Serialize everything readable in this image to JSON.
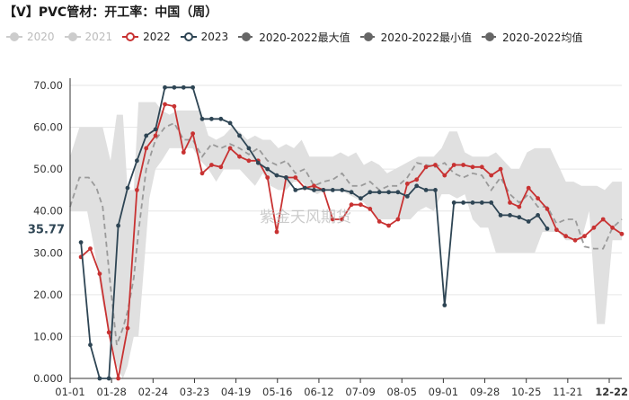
{
  "title": "【V】PVC管材：开工率：中国（周）",
  "watermark": "紫金天风期货",
  "colors": {
    "c2020": "#c8c8c8",
    "c2021": "#c8c8c8",
    "c2022": "#c83232",
    "c2023": "#2e4554",
    "band": "#e0e0e0",
    "avg": "#9a9a9a",
    "endlabel_bg": "#ffffff"
  },
  "legend": [
    {
      "label": "2020",
      "color": "#cccccc",
      "style": "line-dot",
      "muted": true
    },
    {
      "label": "2021",
      "color": "#cccccc",
      "style": "line-dot",
      "muted": true
    },
    {
      "label": "2022",
      "color": "#c83232",
      "style": "line-dot",
      "muted": false
    },
    {
      "label": "2023",
      "color": "#2e4554",
      "style": "line-dot",
      "muted": false
    },
    {
      "label": "2020-2022最大值",
      "color": "#666666",
      "style": "dash-dot",
      "muted": false
    },
    {
      "label": "2020-2022最小值",
      "color": "#666666",
      "style": "dash-dot",
      "muted": false
    },
    {
      "label": "2020-2022均值",
      "color": "#666666",
      "style": "dash-dot",
      "muted": false
    }
  ],
  "end_label": "35.77",
  "chart_data": {
    "type": "line",
    "xlabel": "",
    "ylabel": "",
    "ylim": [
      0,
      70
    ],
    "y_ticks": [
      "0.000",
      "10.00",
      "20.00",
      "30.00",
      "40.00",
      "50.00",
      "60.00",
      "70.00"
    ],
    "x_ticks": [
      "01-01",
      "01-28",
      "02-24",
      "03-23",
      "04-19",
      "05-16",
      "06-12",
      "07-09",
      "08-05",
      "09-01",
      "09-28",
      "10-25",
      "11-21",
      "12-22"
    ],
    "x_domain_days": [
      1,
      356
    ],
    "band_max": [
      [
        1,
        53
      ],
      [
        7,
        60
      ],
      [
        17,
        60
      ],
      [
        22,
        60
      ],
      [
        27,
        52
      ],
      [
        31,
        63
      ],
      [
        35,
        63
      ],
      [
        38,
        45
      ],
      [
        42,
        45
      ],
      [
        45,
        66
      ],
      [
        52,
        66
      ],
      [
        56,
        66
      ],
      [
        60,
        64
      ],
      [
        65,
        63
      ],
      [
        70,
        64
      ],
      [
        80,
        64
      ],
      [
        85,
        64
      ],
      [
        90,
        58
      ],
      [
        95,
        57
      ],
      [
        100,
        58
      ],
      [
        105,
        60
      ],
      [
        110,
        59
      ],
      [
        115,
        57
      ],
      [
        120,
        58
      ],
      [
        125,
        57
      ],
      [
        130,
        57
      ],
      [
        135,
        55
      ],
      [
        140,
        56
      ],
      [
        145,
        55
      ],
      [
        150,
        57
      ],
      [
        155,
        53
      ],
      [
        160,
        53
      ],
      [
        165,
        53
      ],
      [
        170,
        53
      ],
      [
        175,
        54
      ],
      [
        180,
        53
      ],
      [
        185,
        54
      ],
      [
        190,
        51
      ],
      [
        195,
        52
      ],
      [
        200,
        51
      ],
      [
        205,
        49
      ],
      [
        210,
        50
      ],
      [
        215,
        51
      ],
      [
        220,
        52
      ],
      [
        225,
        53
      ],
      [
        230,
        53
      ],
      [
        235,
        53
      ],
      [
        240,
        55
      ],
      [
        245,
        59
      ],
      [
        250,
        59
      ],
      [
        255,
        54
      ],
      [
        260,
        53
      ],
      [
        265,
        53
      ],
      [
        270,
        53
      ],
      [
        275,
        54
      ],
      [
        280,
        52
      ],
      [
        285,
        50
      ],
      [
        290,
        50
      ],
      [
        295,
        54
      ],
      [
        300,
        55
      ],
      [
        305,
        55
      ],
      [
        310,
        55
      ],
      [
        315,
        51
      ],
      [
        320,
        47
      ],
      [
        325,
        47
      ],
      [
        330,
        46
      ],
      [
        335,
        46
      ],
      [
        340,
        46
      ],
      [
        345,
        45
      ],
      [
        350,
        47
      ],
      [
        356,
        47
      ]
    ],
    "band_min": [
      [
        1,
        40
      ],
      [
        7,
        40
      ],
      [
        12,
        40
      ],
      [
        17,
        30
      ],
      [
        22,
        18
      ],
      [
        27,
        10
      ],
      [
        31,
        3
      ],
      [
        35,
        0
      ],
      [
        38,
        3
      ],
      [
        42,
        10
      ],
      [
        45,
        10
      ],
      [
        52,
        43
      ],
      [
        56,
        50
      ],
      [
        60,
        52
      ],
      [
        65,
        55
      ],
      [
        70,
        55
      ],
      [
        80,
        55
      ],
      [
        85,
        52
      ],
      [
        90,
        50
      ],
      [
        95,
        47
      ],
      [
        100,
        50
      ],
      [
        105,
        50
      ],
      [
        110,
        50
      ],
      [
        115,
        48
      ],
      [
        120,
        46
      ],
      [
        125,
        49
      ],
      [
        130,
        46
      ],
      [
        135,
        45
      ],
      [
        140,
        45
      ],
      [
        145,
        47
      ],
      [
        150,
        47
      ],
      [
        155,
        45
      ],
      [
        160,
        44
      ],
      [
        165,
        45
      ],
      [
        170,
        45
      ],
      [
        175,
        45
      ],
      [
        180,
        44
      ],
      [
        185,
        43
      ],
      [
        190,
        42
      ],
      [
        195,
        40
      ],
      [
        200,
        38
      ],
      [
        205,
        38
      ],
      [
        210,
        38
      ],
      [
        215,
        38
      ],
      [
        220,
        38
      ],
      [
        225,
        40
      ],
      [
        230,
        41
      ],
      [
        235,
        40
      ],
      [
        240,
        44
      ],
      [
        245,
        44
      ],
      [
        250,
        43
      ],
      [
        255,
        44
      ],
      [
        260,
        38
      ],
      [
        265,
        36
      ],
      [
        270,
        36
      ],
      [
        275,
        30
      ],
      [
        280,
        30
      ],
      [
        285,
        30
      ],
      [
        290,
        30
      ],
      [
        295,
        30
      ],
      [
        300,
        30
      ],
      [
        305,
        35
      ],
      [
        310,
        35
      ],
      [
        315,
        35
      ],
      [
        320,
        33
      ],
      [
        325,
        33
      ],
      [
        330,
        33
      ],
      [
        335,
        40
      ],
      [
        340,
        13
      ],
      [
        345,
        13
      ],
      [
        350,
        33
      ],
      [
        356,
        33
      ]
    ],
    "series": [
      {
        "name": "2022",
        "color": "#c83232",
        "points": [
          [
            8,
            29
          ],
          [
            14,
            31
          ],
          [
            20,
            25
          ],
          [
            26,
            11
          ],
          [
            32,
            0
          ],
          [
            38,
            12
          ],
          [
            44,
            45
          ],
          [
            50,
            55
          ],
          [
            56,
            58
          ],
          [
            62,
            65.5
          ],
          [
            68,
            65
          ],
          [
            74,
            54
          ],
          [
            80,
            58.5
          ],
          [
            86,
            49
          ],
          [
            92,
            51
          ],
          [
            98,
            50.5
          ],
          [
            104,
            55
          ],
          [
            110,
            53
          ],
          [
            116,
            52
          ],
          [
            122,
            52
          ],
          [
            128,
            48
          ],
          [
            134,
            35
          ],
          [
            140,
            48
          ],
          [
            146,
            48
          ],
          [
            152,
            45.5
          ],
          [
            158,
            46
          ],
          [
            164,
            45
          ],
          [
            170,
            38
          ],
          [
            176,
            38
          ],
          [
            182,
            41.5
          ],
          [
            188,
            41.5
          ],
          [
            194,
            40.5
          ],
          [
            200,
            37.5
          ],
          [
            206,
            36.5
          ],
          [
            212,
            38
          ],
          [
            218,
            46.5
          ],
          [
            224,
            47.5
          ],
          [
            230,
            50.5
          ],
          [
            236,
            51
          ],
          [
            242,
            48.5
          ],
          [
            248,
            51
          ],
          [
            254,
            51
          ],
          [
            260,
            50.5
          ],
          [
            266,
            50.5
          ],
          [
            272,
            48.5
          ],
          [
            278,
            50
          ],
          [
            284,
            42
          ],
          [
            290,
            41
          ],
          [
            296,
            45.5
          ],
          [
            302,
            43
          ],
          [
            308,
            40.5
          ],
          [
            314,
            35.5
          ],
          [
            320,
            34
          ],
          [
            326,
            33
          ],
          [
            332,
            34
          ],
          [
            338,
            36
          ],
          [
            344,
            38
          ],
          [
            350,
            36
          ],
          [
            356,
            34.5
          ]
        ]
      },
      {
        "name": "2023",
        "color": "#2e4554",
        "points": [
          [
            8,
            32.5
          ],
          [
            14,
            8
          ],
          [
            20,
            0
          ],
          [
            26,
            0
          ],
          [
            32,
            36.5
          ],
          [
            38,
            45.5
          ],
          [
            44,
            52
          ],
          [
            50,
            58
          ],
          [
            56,
            59.5
          ],
          [
            62,
            69.5
          ],
          [
            68,
            69.5
          ],
          [
            74,
            69.5
          ],
          [
            80,
            69.5
          ],
          [
            86,
            62
          ],
          [
            92,
            62
          ],
          [
            98,
            62
          ],
          [
            104,
            61
          ],
          [
            110,
            58
          ],
          [
            116,
            55
          ],
          [
            122,
            51.5
          ],
          [
            128,
            50
          ],
          [
            134,
            48.5
          ],
          [
            140,
            48
          ],
          [
            146,
            45
          ],
          [
            152,
            45.5
          ],
          [
            158,
            45
          ],
          [
            164,
            45
          ],
          [
            170,
            45
          ],
          [
            176,
            45
          ],
          [
            182,
            44.5
          ],
          [
            188,
            43
          ],
          [
            194,
            44.5
          ],
          [
            200,
            44.5
          ],
          [
            206,
            44.5
          ],
          [
            212,
            44.5
          ],
          [
            218,
            43.5
          ],
          [
            224,
            46
          ],
          [
            230,
            45
          ],
          [
            236,
            45
          ],
          [
            242,
            17.5
          ],
          [
            248,
            42
          ],
          [
            254,
            42
          ],
          [
            260,
            42
          ],
          [
            266,
            42
          ],
          [
            272,
            42
          ],
          [
            278,
            39
          ],
          [
            284,
            39
          ],
          [
            290,
            38.5
          ],
          [
            296,
            37.5
          ],
          [
            302,
            39
          ],
          [
            308,
            35.77
          ]
        ]
      }
    ],
    "average_series": {
      "name": "2020-2022均值",
      "points": [
        [
          1,
          41
        ],
        [
          7,
          48
        ],
        [
          13,
          48
        ],
        [
          18,
          45.5
        ],
        [
          22,
          41
        ],
        [
          27,
          22
        ],
        [
          31,
          8
        ],
        [
          35,
          12
        ],
        [
          38,
          16
        ],
        [
          42,
          24
        ],
        [
          45,
          35
        ],
        [
          50,
          50
        ],
        [
          56,
          57
        ],
        [
          62,
          60
        ],
        [
          68,
          61
        ],
        [
          74,
          57
        ],
        [
          80,
          57
        ],
        [
          86,
          53
        ],
        [
          92,
          56
        ],
        [
          98,
          55
        ],
        [
          104,
          56
        ],
        [
          110,
          55
        ],
        [
          116,
          53.5
        ],
        [
          122,
          55
        ],
        [
          128,
          52
        ],
        [
          134,
          51
        ],
        [
          140,
          52
        ],
        [
          146,
          49
        ],
        [
          152,
          50
        ],
        [
          158,
          46
        ],
        [
          164,
          47
        ],
        [
          170,
          47.5
        ],
        [
          176,
          49
        ],
        [
          182,
          46
        ],
        [
          188,
          46
        ],
        [
          194,
          47
        ],
        [
          200,
          45
        ],
        [
          206,
          46
        ],
        [
          212,
          46
        ],
        [
          218,
          48
        ],
        [
          224,
          51.5
        ],
        [
          230,
          51
        ],
        [
          236,
          50.5
        ],
        [
          242,
          51.5
        ],
        [
          248,
          49
        ],
        [
          254,
          48
        ],
        [
          260,
          49
        ],
        [
          266,
          48.5
        ],
        [
          272,
          45
        ],
        [
          278,
          48
        ],
        [
          284,
          44
        ],
        [
          290,
          42
        ],
        [
          296,
          44
        ],
        [
          302,
          41
        ],
        [
          308,
          41
        ],
        [
          314,
          37
        ],
        [
          320,
          38
        ],
        [
          326,
          38
        ],
        [
          332,
          31.5
        ],
        [
          338,
          31
        ],
        [
          344,
          31
        ],
        [
          350,
          36
        ],
        [
          356,
          38
        ]
      ]
    }
  }
}
